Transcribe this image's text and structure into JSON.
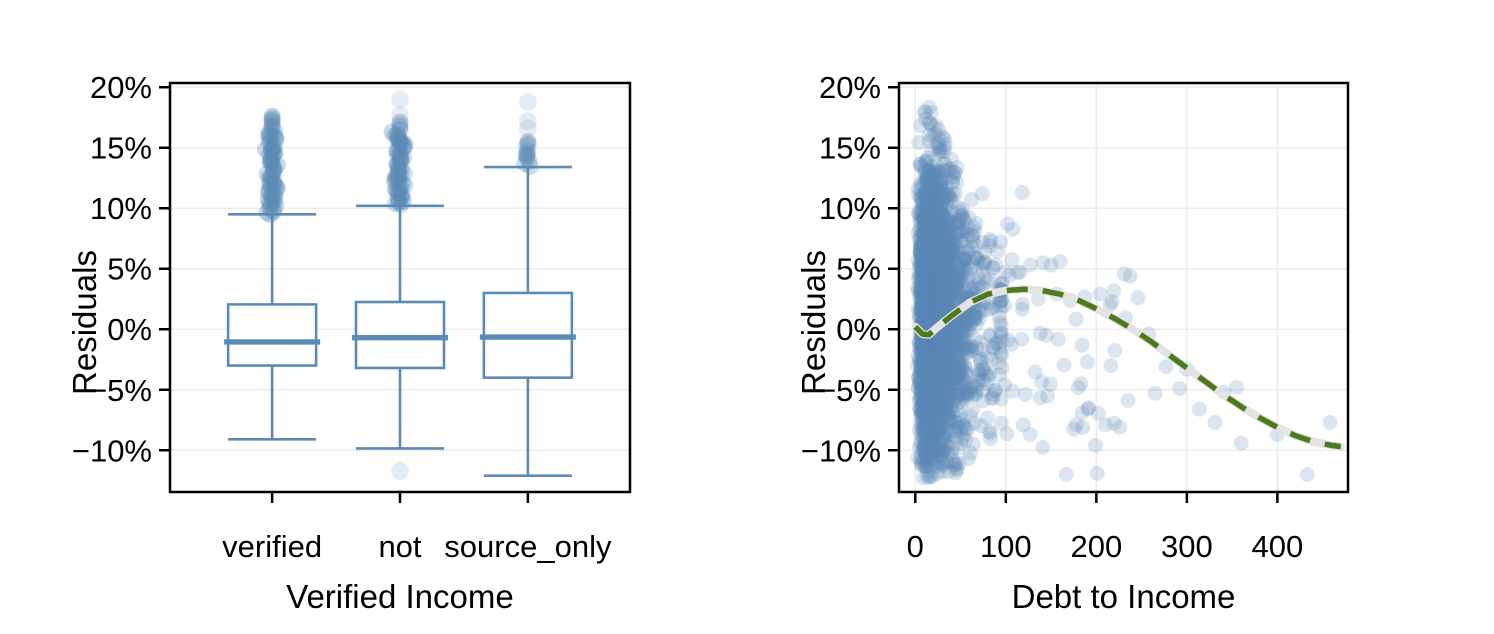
{
  "figure": {
    "background": "#ffffff",
    "frame_color": "#000000",
    "grid_color": "#ececec",
    "accent_blue": "#5b8ab6",
    "trend_green": "#4d7a1d",
    "trend_halo": "#e3e3e3"
  },
  "chart_data": [
    {
      "type": "box",
      "title": "",
      "xlabel": "Verified Income",
      "ylabel": "Residuals",
      "categories": [
        "verified",
        "not",
        "source_only"
      ],
      "ylim": [
        -13.45,
        20.35
      ],
      "yticks": [
        {
          "v": 20,
          "label": "20%"
        },
        {
          "v": 15,
          "label": "15%"
        },
        {
          "v": 10,
          "label": "10%"
        },
        {
          "v": 5,
          "label": "5%"
        },
        {
          "v": 0,
          "label": "0%"
        },
        {
          "v": -5,
          "label": "−5%"
        },
        {
          "v": -10,
          "label": "−10%"
        }
      ],
      "grid": "horizontal",
      "box_color": "#5b8ab6",
      "point_color": "#5b8ab6",
      "boxes": [
        {
          "category": "verified",
          "whisker_low": -9.1,
          "q1": -3.0,
          "median": -1.05,
          "q3": 2.05,
          "whisker_high": 9.5,
          "outlier_band": {
            "min": 9.6,
            "max": 16.4,
            "count": 65,
            "seed": 11
          },
          "outliers_single": [
            16.7,
            16.95,
            17.2,
            17.4,
            17.6
          ],
          "outliers_pale": []
        },
        {
          "category": "not",
          "whisker_low": -9.85,
          "q1": -3.2,
          "median": -0.7,
          "q3": 2.25,
          "whisker_high": 10.2,
          "outlier_band": {
            "min": 10.3,
            "max": 16.2,
            "count": 60,
            "seed": 22
          },
          "outliers_single": [
            16.5,
            16.8,
            17.1
          ],
          "outliers_pale": [
            17.7,
            19.0,
            -11.7
          ]
        },
        {
          "category": "source_only",
          "whisker_low": -12.1,
          "q1": -4.0,
          "median": -0.65,
          "q3": 3.0,
          "whisker_high": 13.4,
          "outlier_band": {
            "min": 13.45,
            "max": 15.2,
            "count": 10,
            "seed": 33
          },
          "outliers_single": [
            15.5
          ],
          "outliers_pale": [
            16.6,
            17.2,
            18.8
          ]
        }
      ]
    },
    {
      "type": "scatter",
      "title": "",
      "xlabel": "Debt to Income",
      "ylabel": "Residuals",
      "xlim": [
        -18,
        478
      ],
      "ylim": [
        -13.45,
        20.35
      ],
      "xticks": [
        {
          "v": 0,
          "label": "0"
        },
        {
          "v": 100,
          "label": "100"
        },
        {
          "v": 200,
          "label": "200"
        },
        {
          "v": 300,
          "label": "300"
        },
        {
          "v": 400,
          "label": "400"
        }
      ],
      "yticks": [
        {
          "v": 20,
          "label": "20%"
        },
        {
          "v": 15,
          "label": "15%"
        },
        {
          "v": 10,
          "label": "10%"
        },
        {
          "v": 5,
          "label": "5%"
        },
        {
          "v": 0,
          "label": "0%"
        },
        {
          "v": -5,
          "label": "−5%"
        },
        {
          "v": -10,
          "label": "−10%"
        }
      ],
      "grid": "both",
      "point_color": "#5b8ab6",
      "point_alpha": 0.22,
      "point_radius": 7.5,
      "cluster": {
        "seed": 12345,
        "n": 3200,
        "x_log_mean": 20,
        "x_log_sd": 0.62,
        "x_min": 0.5,
        "x_max": 95,
        "y_mean": 1.0,
        "y_sd": 6.2,
        "top_base": 19.3,
        "top_slope_start": 10,
        "top_slope": 0.16,
        "bot_base": -12.4,
        "bot_slope_start": 50,
        "bot_slope": 0.1
      },
      "mid_band": {
        "seed": 777,
        "n": 85,
        "x_min": 55,
        "x_max": 240,
        "x_pow": 1.6,
        "y_mean": -1.5,
        "y_sd": 4.8,
        "y_min": -12.0,
        "top_base": 11.5,
        "top_slope": 0.03
      },
      "far_points": [
        [
          74,
          11.2
        ],
        [
          102,
          8.7
        ],
        [
          118,
          11.3
        ],
        [
          127,
          5.3
        ],
        [
          141,
          5.5
        ],
        [
          150,
          5.3
        ],
        [
          160,
          5.6
        ],
        [
          96,
          3.8
        ],
        [
          136,
          2.5
        ],
        [
          171,
          2.4
        ],
        [
          246,
          2.6
        ],
        [
          258,
          -0.4
        ],
        [
          265,
          -5.3
        ],
        [
          277,
          -3.1
        ],
        [
          292,
          -4.9
        ],
        [
          300,
          -3.3
        ],
        [
          314,
          -6.6
        ],
        [
          331,
          -7.7
        ],
        [
          341,
          -5.2
        ],
        [
          355,
          -4.8
        ],
        [
          360,
          -9.4
        ],
        [
          400,
          -8.7
        ],
        [
          433,
          -12.0
        ],
        [
          458,
          -7.7
        ],
        [
          201,
          -11.9
        ],
        [
          199,
          -9.6
        ],
        [
          210,
          -7.9
        ],
        [
          226,
          -8.1
        ],
        [
          235,
          -5.9
        ],
        [
          216,
          -3.0
        ],
        [
          190,
          -2.7
        ],
        [
          183,
          -4.5
        ],
        [
          178,
          -7.9
        ],
        [
          127,
          -8.7
        ],
        [
          64,
          -9.5
        ],
        [
          46,
          -11.6
        ]
      ],
      "trend": {
        "color": "#4d7a1d",
        "halo_color": "#e3e3e3",
        "dash": [
          21,
          15
        ],
        "width": 5.5,
        "halo_width": 8,
        "x": [
          0,
          8,
          15,
          25,
          40,
          60,
          80,
          100,
          120,
          140,
          160,
          180,
          200,
          220,
          240,
          260,
          280,
          300,
          320,
          340,
          360,
          380,
          400,
          420,
          440,
          460,
          470
        ],
        "y": [
          0.2,
          -0.4,
          -0.45,
          0.2,
          1.1,
          2.2,
          2.9,
          3.2,
          3.3,
          3.2,
          2.9,
          2.4,
          1.7,
          0.9,
          0.0,
          -1.0,
          -2.1,
          -3.2,
          -4.3,
          -5.4,
          -6.4,
          -7.3,
          -8.1,
          -8.8,
          -9.3,
          -9.6,
          -9.7
        ]
      }
    }
  ]
}
